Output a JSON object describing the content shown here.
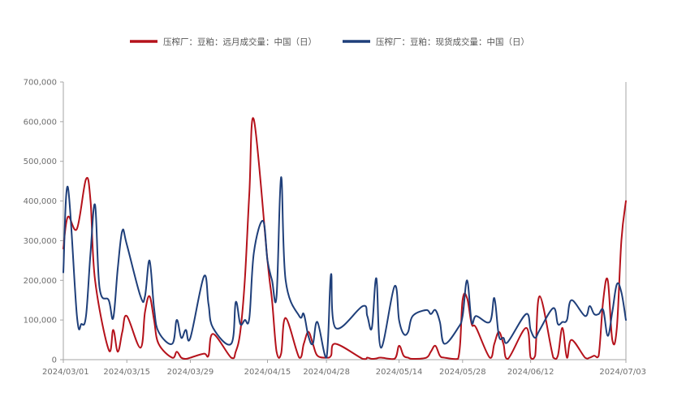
{
  "chart_data": {
    "type": "line",
    "title": "",
    "xlabel": "",
    "ylabel": "",
    "ylim": [
      0,
      700000
    ],
    "y_ticks": [
      "0",
      "100,000",
      "200,000",
      "300,000",
      "400,000",
      "500,000",
      "600,000",
      "700,000"
    ],
    "y_tick_values": [
      0,
      100000,
      200000,
      300000,
      400000,
      500000,
      600000,
      700000
    ],
    "x_ticks": [
      "2024/03/01",
      "2024/03/15",
      "2024/03/29",
      "2024/04/15",
      "2024/04/28",
      "2024/05/14",
      "2024/05/28",
      "2024/06/12",
      "2024/07/03"
    ],
    "x_tick_dates": [
      "2024-03-01",
      "2024-03-15",
      "2024-03-29",
      "2024-04-15",
      "2024-04-28",
      "2024-05-14",
      "2024-05-28",
      "2024-06-12",
      "2024-07-03"
    ],
    "grid": false,
    "legend_position": "top-center",
    "series": [
      {
        "name": "压榨厂：豆粕：远月成交量：中国（日）",
        "color": "#b5121b",
        "points": [
          [
            "2024-03-01",
            280000
          ],
          [
            "2024-03-02",
            360000
          ],
          [
            "2024-03-04",
            330000
          ],
          [
            "2024-03-06",
            455000
          ],
          [
            "2024-03-07",
            400000
          ],
          [
            "2024-03-08",
            200000
          ],
          [
            "2024-03-11",
            25000
          ],
          [
            "2024-03-12",
            75000
          ],
          [
            "2024-03-13",
            20000
          ],
          [
            "2024-03-14",
            70000
          ],
          [
            "2024-03-15",
            110000
          ],
          [
            "2024-03-18",
            30000
          ],
          [
            "2024-03-19",
            120000
          ],
          [
            "2024-03-20",
            160000
          ],
          [
            "2024-03-21",
            100000
          ],
          [
            "2024-03-22",
            40000
          ],
          [
            "2024-03-25",
            5000
          ],
          [
            "2024-03-26",
            20000
          ],
          [
            "2024-03-27",
            5000
          ],
          [
            "2024-03-28",
            2000
          ],
          [
            "2024-03-29",
            5000
          ],
          [
            "2024-04-01",
            15000
          ],
          [
            "2024-04-02",
            10000
          ],
          [
            "2024-04-03",
            65000
          ],
          [
            "2024-04-07",
            5000
          ],
          [
            "2024-04-08",
            20000
          ],
          [
            "2024-04-09",
            70000
          ],
          [
            "2024-04-10",
            200000
          ],
          [
            "2024-04-11",
            420000
          ],
          [
            "2024-04-12",
            605000
          ],
          [
            "2024-04-15",
            250000
          ],
          [
            "2024-04-16",
            150000
          ],
          [
            "2024-04-17",
            20000
          ],
          [
            "2024-04-18",
            15000
          ],
          [
            "2024-04-19",
            105000
          ],
          [
            "2024-04-22",
            5000
          ],
          [
            "2024-04-23",
            40000
          ],
          [
            "2024-04-24",
            70000
          ],
          [
            "2024-04-25",
            40000
          ],
          [
            "2024-04-26",
            10000
          ],
          [
            "2024-04-28",
            5000
          ],
          [
            "2024-04-29",
            10000
          ],
          [
            "2024-04-30",
            40000
          ],
          [
            "2024-05-06",
            2000
          ],
          [
            "2024-05-07",
            5000
          ],
          [
            "2024-05-08",
            2000
          ],
          [
            "2024-05-09",
            3000
          ],
          [
            "2024-05-10",
            5000
          ],
          [
            "2024-05-13",
            2000
          ],
          [
            "2024-05-14",
            35000
          ],
          [
            "2024-05-15",
            10000
          ],
          [
            "2024-05-16",
            5000
          ],
          [
            "2024-05-17",
            2000
          ],
          [
            "2024-05-20",
            5000
          ],
          [
            "2024-05-21",
            20000
          ],
          [
            "2024-05-22",
            35000
          ],
          [
            "2024-05-23",
            10000
          ],
          [
            "2024-05-24",
            5000
          ],
          [
            "2024-05-27",
            2000
          ],
          [
            "2024-05-28",
            150000
          ],
          [
            "2024-05-29",
            155000
          ],
          [
            "2024-05-30",
            90000
          ],
          [
            "2024-05-31",
            80000
          ],
          [
            "2024-06-03",
            5000
          ],
          [
            "2024-06-04",
            40000
          ],
          [
            "2024-06-05",
            70000
          ],
          [
            "2024-06-06",
            40000
          ],
          [
            "2024-06-07",
            2000
          ],
          [
            "2024-06-11",
            80000
          ],
          [
            "2024-06-12",
            5000
          ],
          [
            "2024-06-13",
            10000
          ],
          [
            "2024-06-14",
            160000
          ],
          [
            "2024-06-17",
            5000
          ],
          [
            "2024-06-18",
            10000
          ],
          [
            "2024-06-19",
            80000
          ],
          [
            "2024-06-20",
            5000
          ],
          [
            "2024-06-21",
            50000
          ],
          [
            "2024-06-24",
            5000
          ],
          [
            "2024-06-25",
            5000
          ],
          [
            "2024-06-26",
            10000
          ],
          [
            "2024-06-27",
            10000
          ],
          [
            "2024-06-28",
            150000
          ],
          [
            "2024-06-29",
            200000
          ],
          [
            "2024-06-30",
            50000
          ],
          [
            "2024-07-01",
            80000
          ],
          [
            "2024-07-02",
            300000
          ],
          [
            "2024-07-03",
            400000
          ]
        ]
      },
      {
        "name": "压榨厂：豆粕：现货成交量：中国（日）",
        "color": "#1f3f7a",
        "points": [
          [
            "2024-03-01",
            220000
          ],
          [
            "2024-03-02",
            435000
          ],
          [
            "2024-03-04",
            110000
          ],
          [
            "2024-03-05",
            90000
          ],
          [
            "2024-03-06",
            110000
          ],
          [
            "2024-03-07",
            270000
          ],
          [
            "2024-03-08",
            390000
          ],
          [
            "2024-03-09",
            180000
          ],
          [
            "2024-03-11",
            150000
          ],
          [
            "2024-03-12",
            105000
          ],
          [
            "2024-03-13",
            230000
          ],
          [
            "2024-03-14",
            325000
          ],
          [
            "2024-03-15",
            290000
          ],
          [
            "2024-03-18",
            160000
          ],
          [
            "2024-03-19",
            160000
          ],
          [
            "2024-03-20",
            250000
          ],
          [
            "2024-03-21",
            130000
          ],
          [
            "2024-03-22",
            70000
          ],
          [
            "2024-03-25",
            40000
          ],
          [
            "2024-03-26",
            100000
          ],
          [
            "2024-03-27",
            55000
          ],
          [
            "2024-03-28",
            75000
          ],
          [
            "2024-03-29",
            55000
          ],
          [
            "2024-04-01",
            210000
          ],
          [
            "2024-04-02",
            140000
          ],
          [
            "2024-04-03",
            80000
          ],
          [
            "2024-04-07",
            40000
          ],
          [
            "2024-04-08",
            145000
          ],
          [
            "2024-04-09",
            90000
          ],
          [
            "2024-04-10",
            100000
          ],
          [
            "2024-04-11",
            105000
          ],
          [
            "2024-04-12",
            270000
          ],
          [
            "2024-04-14",
            350000
          ],
          [
            "2024-04-15",
            250000
          ],
          [
            "2024-04-16",
            200000
          ],
          [
            "2024-04-17",
            160000
          ],
          [
            "2024-04-18",
            460000
          ],
          [
            "2024-04-19",
            200000
          ],
          [
            "2024-04-22",
            110000
          ],
          [
            "2024-04-23",
            115000
          ],
          [
            "2024-04-24",
            60000
          ],
          [
            "2024-04-25",
            40000
          ],
          [
            "2024-04-26",
            95000
          ],
          [
            "2024-04-28",
            5000
          ],
          [
            "2024-04-29",
            215000
          ],
          [
            "2024-04-30",
            80000
          ],
          [
            "2024-05-06",
            135000
          ],
          [
            "2024-05-07",
            110000
          ],
          [
            "2024-05-08",
            80000
          ],
          [
            "2024-05-09",
            205000
          ],
          [
            "2024-05-10",
            30000
          ],
          [
            "2024-05-13",
            185000
          ],
          [
            "2024-05-14",
            100000
          ],
          [
            "2024-05-15",
            65000
          ],
          [
            "2024-05-16",
            70000
          ],
          [
            "2024-05-17",
            110000
          ],
          [
            "2024-05-20",
            125000
          ],
          [
            "2024-05-21",
            115000
          ],
          [
            "2024-05-22",
            125000
          ],
          [
            "2024-05-23",
            95000
          ],
          [
            "2024-05-24",
            40000
          ],
          [
            "2024-05-27",
            80000
          ],
          [
            "2024-05-28",
            110000
          ],
          [
            "2024-05-29",
            200000
          ],
          [
            "2024-05-30",
            95000
          ],
          [
            "2024-05-31",
            110000
          ],
          [
            "2024-06-03",
            95000
          ],
          [
            "2024-06-04",
            155000
          ],
          [
            "2024-06-05",
            60000
          ],
          [
            "2024-06-06",
            55000
          ],
          [
            "2024-06-07",
            45000
          ],
          [
            "2024-06-11",
            115000
          ],
          [
            "2024-06-12",
            75000
          ],
          [
            "2024-06-13",
            55000
          ],
          [
            "2024-06-14",
            75000
          ],
          [
            "2024-06-17",
            130000
          ],
          [
            "2024-06-18",
            90000
          ],
          [
            "2024-06-19",
            95000
          ],
          [
            "2024-06-20",
            100000
          ],
          [
            "2024-06-21",
            150000
          ],
          [
            "2024-06-24",
            110000
          ],
          [
            "2024-06-25",
            135000
          ],
          [
            "2024-06-26",
            115000
          ],
          [
            "2024-06-27",
            115000
          ],
          [
            "2024-06-28",
            125000
          ],
          [
            "2024-06-29",
            60000
          ],
          [
            "2024-06-30",
            120000
          ],
          [
            "2024-07-01",
            190000
          ],
          [
            "2024-07-02",
            170000
          ],
          [
            "2024-07-03",
            100000
          ]
        ]
      }
    ]
  }
}
